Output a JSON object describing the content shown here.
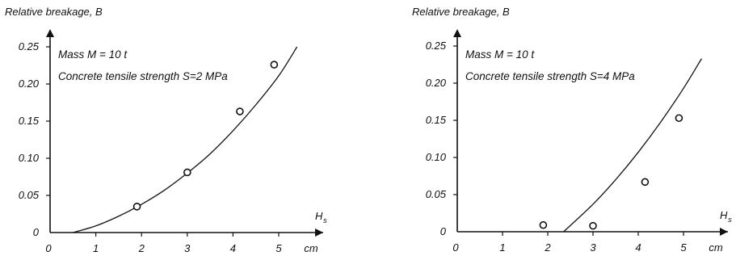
{
  "chart_data": [
    {
      "type": "scatter",
      "ylabel": "Relative breakage, B",
      "xlabel_symbol": "H",
      "xlabel_subscript": "s",
      "xunit": "cm",
      "annotations": [
        "Mass M = 10 t",
        "Concrete tensile strength S=2 MPa"
      ],
      "x_ticks": [
        "0",
        "1",
        "2",
        "3",
        "4",
        "5"
      ],
      "y_ticks": [
        "0",
        "0.05",
        "0.10",
        "0.15",
        "0.20",
        "0.25"
      ],
      "xlim": [
        0,
        5.5
      ],
      "ylim": [
        0,
        0.27
      ],
      "grid": false,
      "points": [
        {
          "x": 1.9,
          "y": 0.035
        },
        {
          "x": 3.0,
          "y": 0.081
        },
        {
          "x": 4.15,
          "y": 0.163
        },
        {
          "x": 4.9,
          "y": 0.226
        }
      ],
      "fit_curve": [
        {
          "x": 0.5,
          "y": 0.0
        },
        {
          "x": 1.0,
          "y": 0.009
        },
        {
          "x": 1.5,
          "y": 0.022
        },
        {
          "x": 2.0,
          "y": 0.038
        },
        {
          "x": 2.5,
          "y": 0.057
        },
        {
          "x": 3.0,
          "y": 0.08
        },
        {
          "x": 3.5,
          "y": 0.106
        },
        {
          "x": 4.0,
          "y": 0.137
        },
        {
          "x": 4.5,
          "y": 0.172
        },
        {
          "x": 5.0,
          "y": 0.211
        },
        {
          "x": 5.4,
          "y": 0.25
        }
      ]
    },
    {
      "type": "scatter",
      "ylabel": "Relative breakage, B",
      "xlabel_symbol": "H",
      "xlabel_subscript": "s",
      "xunit": "cm",
      "annotations": [
        "Mass M = 10 t",
        "Concrete tensile strength S=4 MPa"
      ],
      "x_ticks": [
        "0",
        "1",
        "2",
        "3",
        "4",
        "5"
      ],
      "y_ticks": [
        "0",
        "0.05",
        "0.10",
        "0.15",
        "0.20",
        "0.25"
      ],
      "xlim": [
        0,
        5.5
      ],
      "ylim": [
        0,
        0.27
      ],
      "grid": false,
      "points": [
        {
          "x": 1.9,
          "y": 0.009
        },
        {
          "x": 3.0,
          "y": 0.008
        },
        {
          "x": 4.15,
          "y": 0.067
        },
        {
          "x": 4.9,
          "y": 0.153
        }
      ],
      "fit_curve": [
        {
          "x": 2.35,
          "y": 0.0
        },
        {
          "x": 3.0,
          "y": 0.037
        },
        {
          "x": 3.5,
          "y": 0.07
        },
        {
          "x": 4.0,
          "y": 0.107
        },
        {
          "x": 4.5,
          "y": 0.148
        },
        {
          "x": 5.0,
          "y": 0.193
        },
        {
          "x": 5.4,
          "y": 0.233
        }
      ]
    }
  ]
}
